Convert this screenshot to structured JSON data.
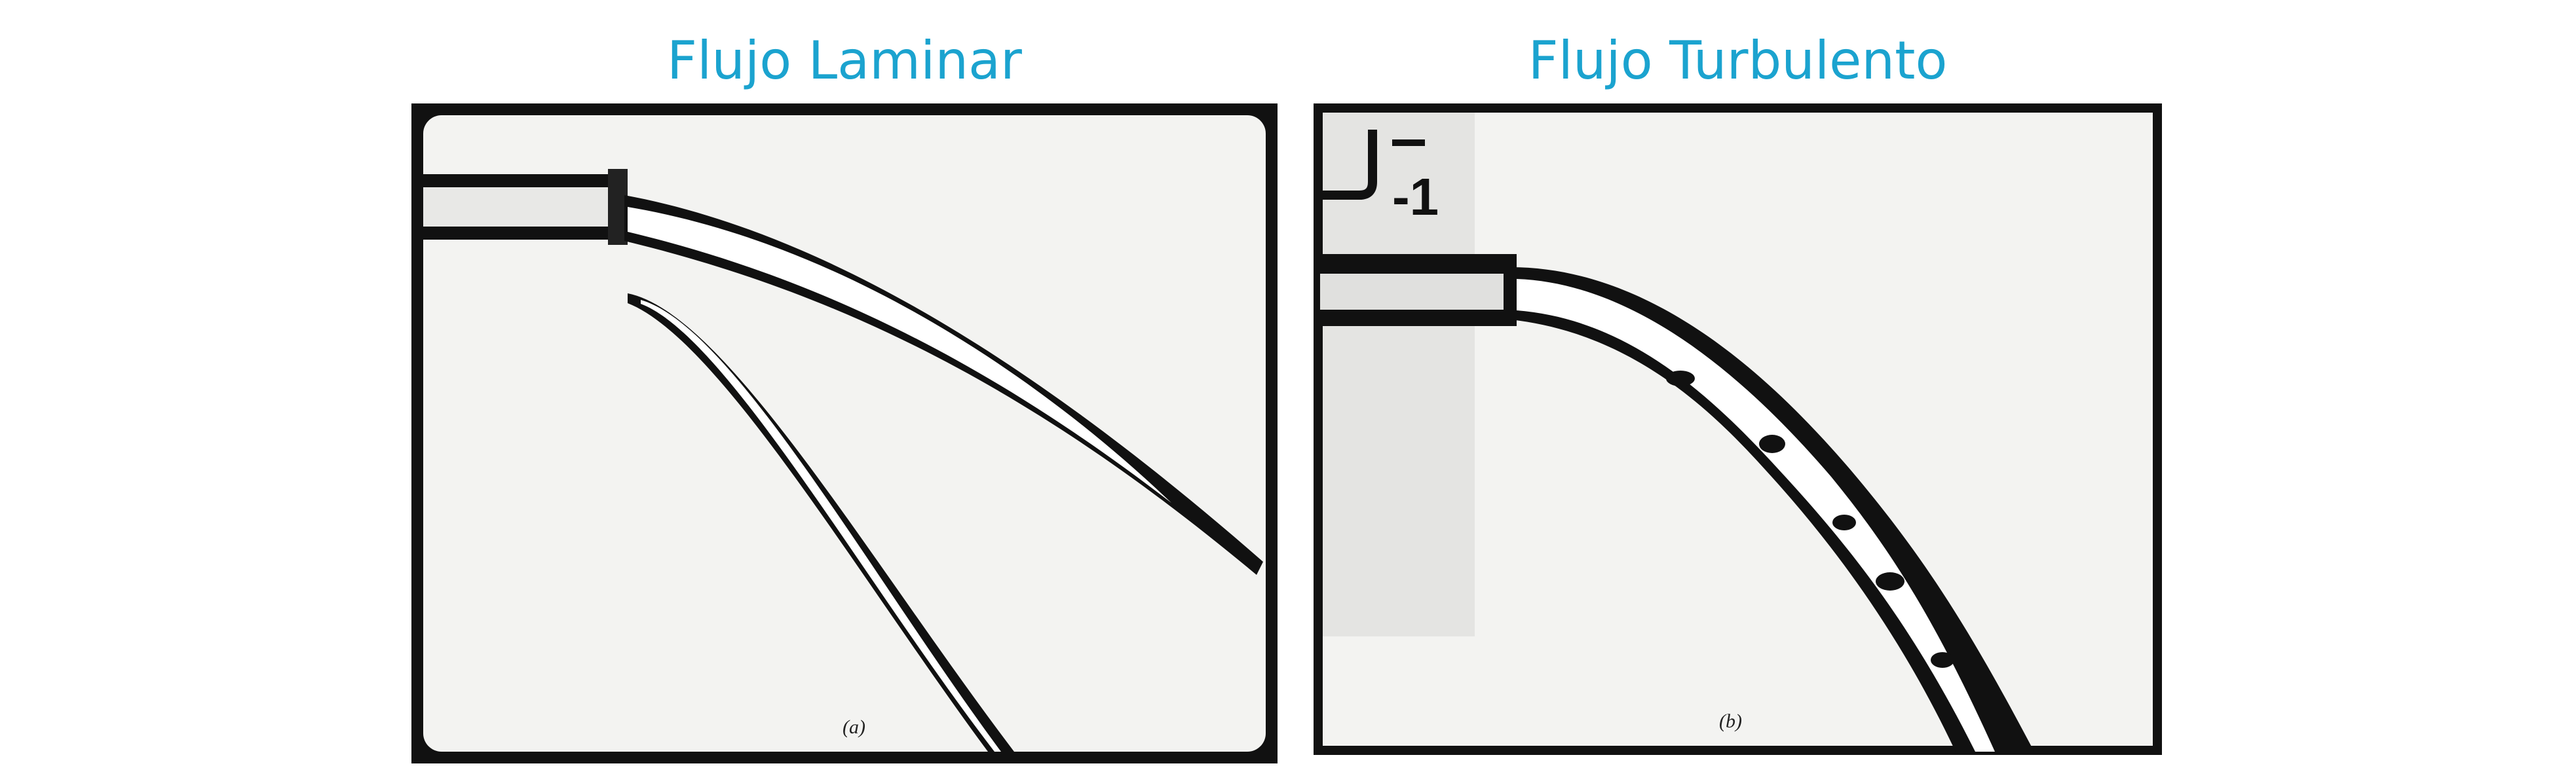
{
  "colors": {
    "title": "#1ba3cf",
    "frame": "#111111",
    "background": "#f3f3f1",
    "water": "#ffffff"
  },
  "panels": [
    {
      "title": "Flujo Laminar",
      "caption": "(a)"
    },
    {
      "title": "Flujo Turbulento",
      "caption": "(b)",
      "scale_mark": "-1"
    }
  ]
}
